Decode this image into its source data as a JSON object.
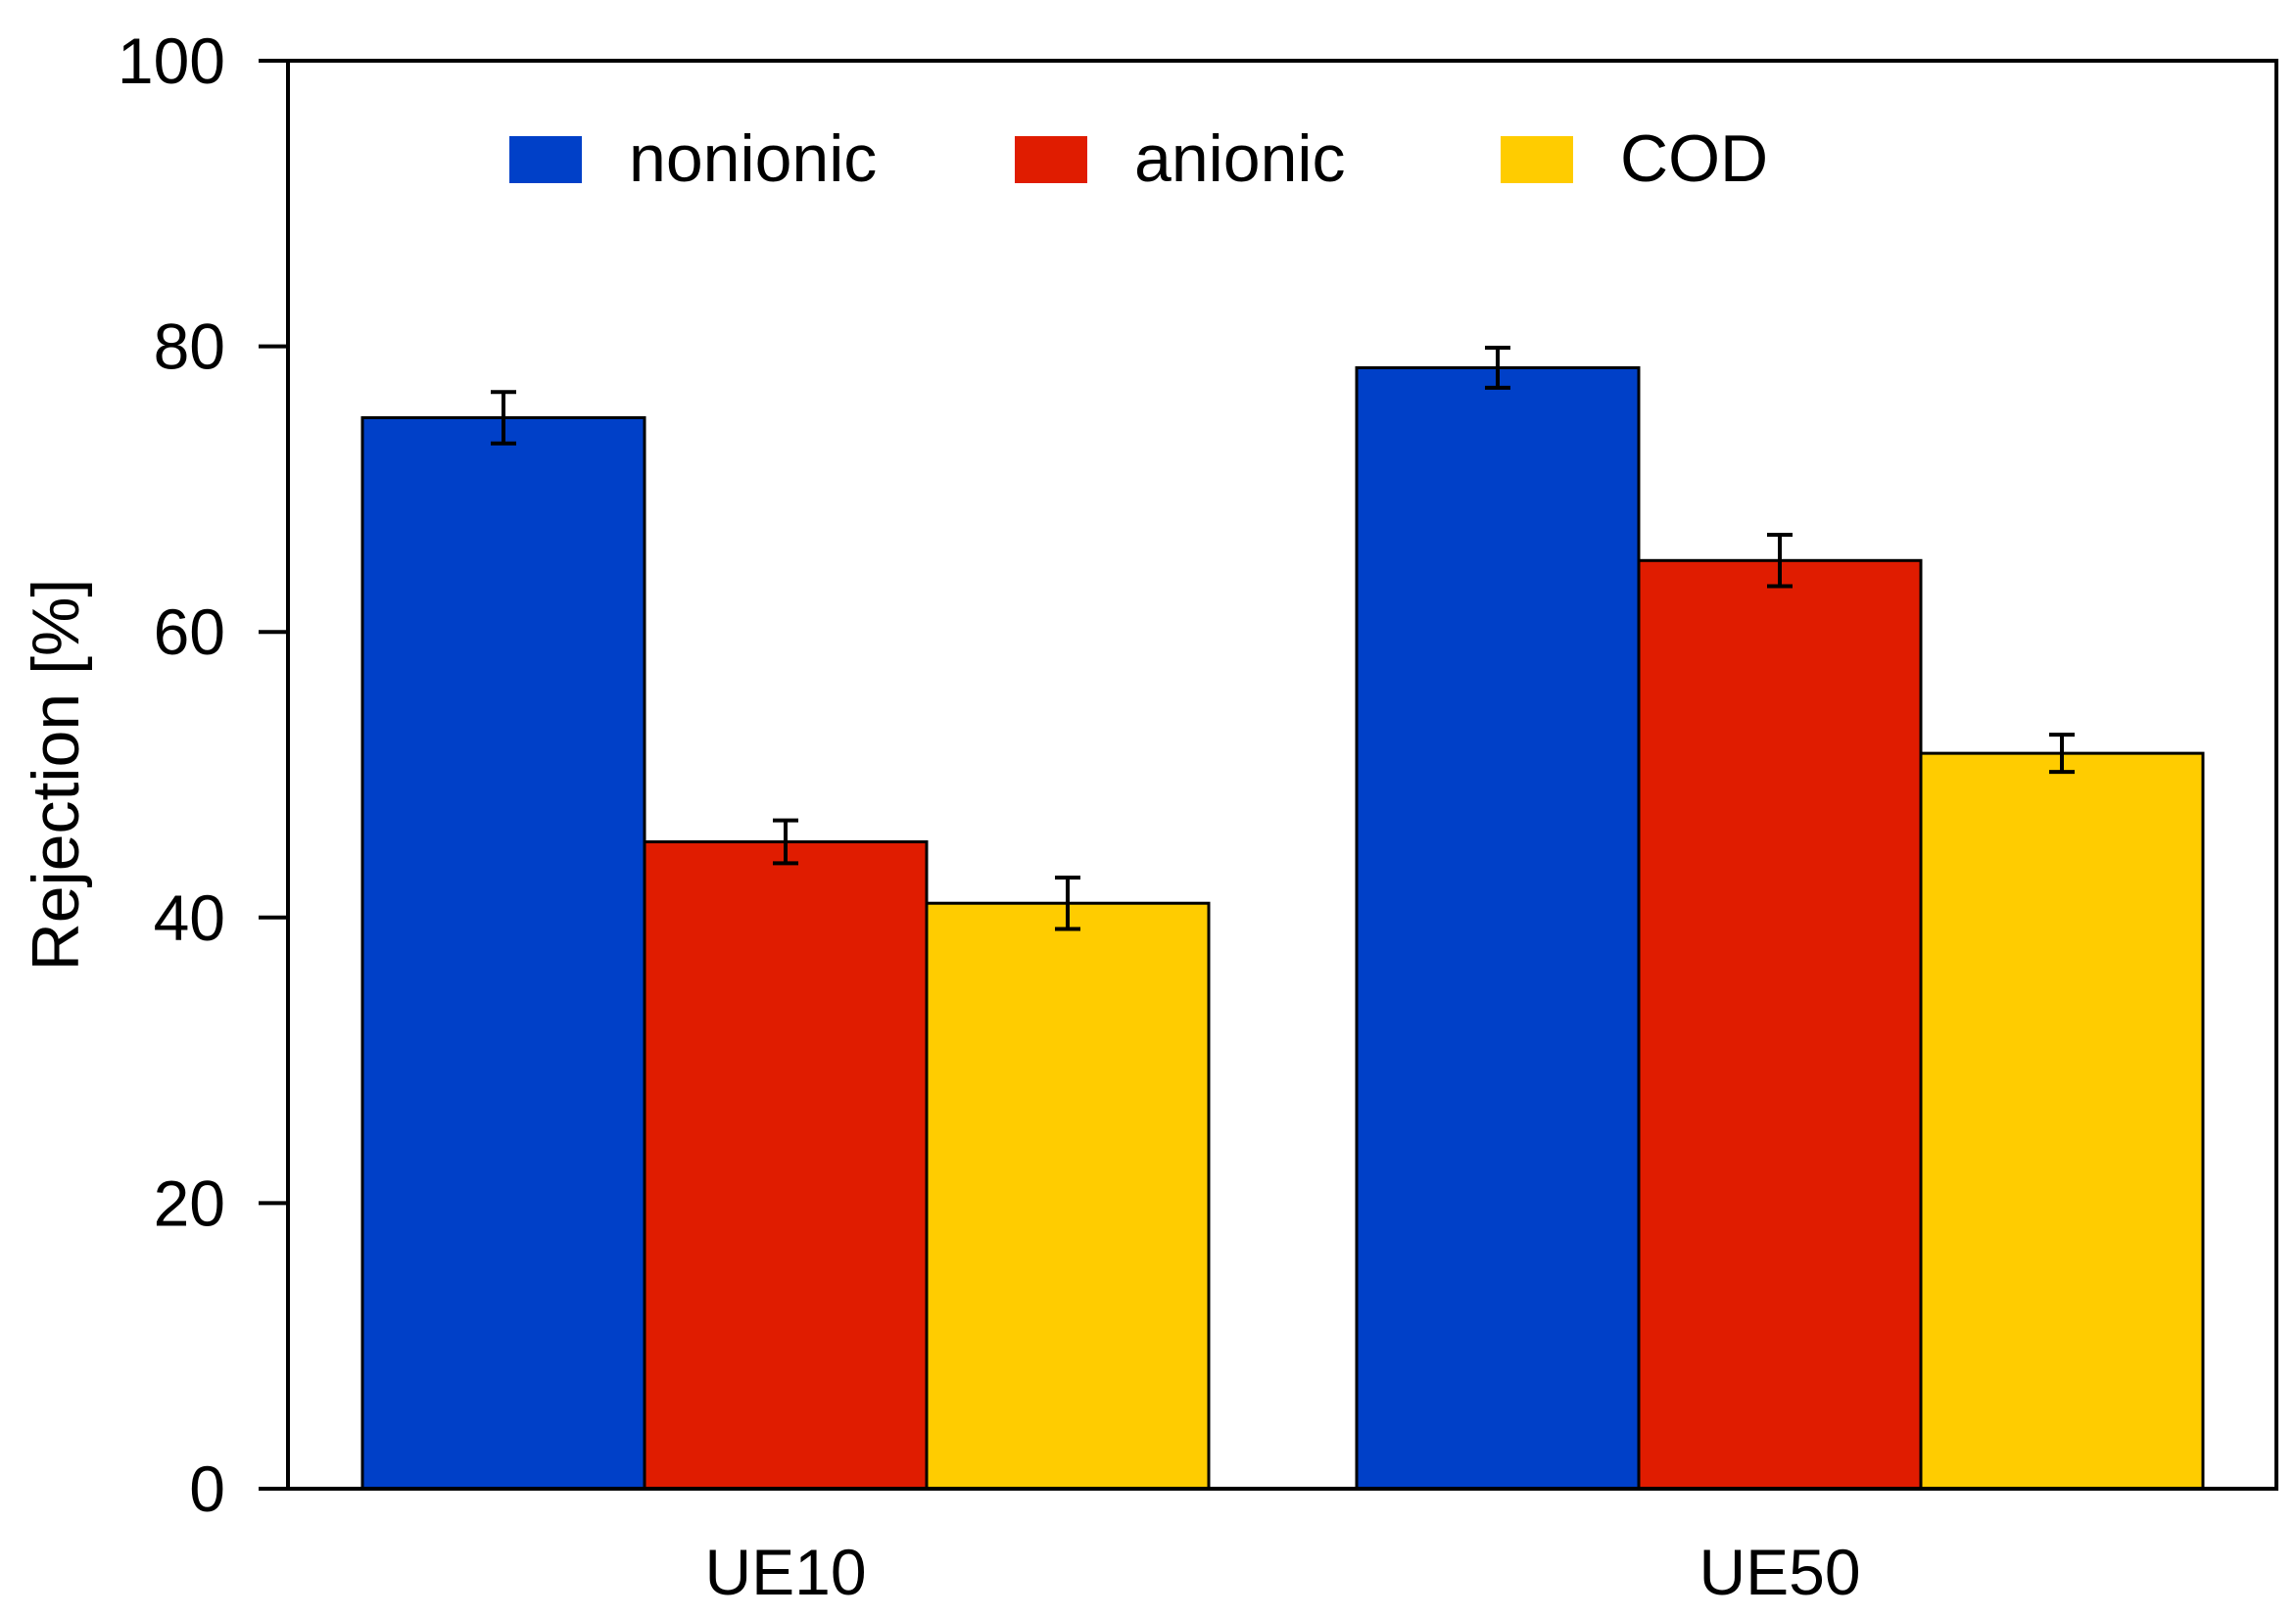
{
  "chart_data": {
    "type": "bar",
    "title": "",
    "xlabel": "",
    "ylabel": "Rejection [%]",
    "ylim": [
      0,
      100
    ],
    "yticks": [
      "0",
      "20",
      "40",
      "60",
      "80",
      "100"
    ],
    "categories": [
      "UE10",
      "UE50"
    ],
    "series": [
      {
        "name": "nonionic",
        "color": "#0040c8",
        "values": [
          75.0,
          78.5
        ],
        "errors": [
          1.8,
          1.4
        ]
      },
      {
        "name": "anionic",
        "color": "#e01c00",
        "values": [
          45.3,
          65.0
        ],
        "errors": [
          1.5,
          1.8
        ]
      },
      {
        "name": "COD",
        "color": "#ffcc00",
        "values": [
          41.0,
          51.5
        ],
        "errors": [
          1.8,
          1.3
        ]
      }
    ],
    "legend_position": "top"
  }
}
